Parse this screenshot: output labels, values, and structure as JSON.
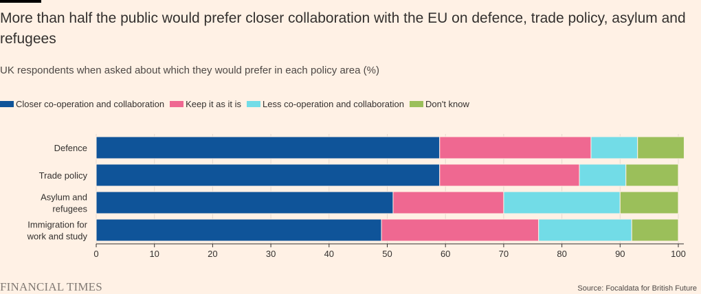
{
  "header": {
    "title": "More than half the public would prefer closer collaboration with the EU on defence, trade policy, asylum and refugees",
    "subtitle": "UK respondents when asked about which they would prefer in each policy area (%)"
  },
  "legend": [
    {
      "label": "Closer co-operation and collaboration",
      "color": "#0f5499"
    },
    {
      "label": "Keep it as it is",
      "color": "#ef6891"
    },
    {
      "label": "Less co-operation and collaboration",
      "color": "#72dce7"
    },
    {
      "label": "Don't know",
      "color": "#9bbf5a"
    }
  ],
  "chart_data": {
    "type": "bar",
    "orientation": "horizontal",
    "stacked": true,
    "title": "More than half the public would prefer closer collaboration with the EU on defence, trade policy, asylum and refugees",
    "subtitle": "UK respondents when asked about which they would prefer in each policy area (%)",
    "categories": [
      "Defence",
      "Trade policy",
      "Asylum and refugees",
      "Immigration for work and study"
    ],
    "category_lines": [
      [
        "Defence"
      ],
      [
        "Trade policy"
      ],
      [
        "Asylum and",
        "refugees"
      ],
      [
        "Immigration for",
        "work and study"
      ]
    ],
    "series": [
      {
        "name": "Closer co-operation and collaboration",
        "values": [
          59,
          59,
          51,
          49
        ],
        "color": "#0f5499"
      },
      {
        "name": "Keep it as it is",
        "values": [
          26,
          24,
          19,
          27
        ],
        "color": "#ef6891"
      },
      {
        "name": "Less co-operation and collaboration",
        "values": [
          8,
          8,
          20,
          16
        ],
        "color": "#72dce7"
      },
      {
        "name": "Don't know",
        "values": [
          8,
          9,
          10,
          8
        ],
        "color": "#9bbf5a"
      }
    ],
    "xlim": [
      0,
      100
    ],
    "xticks": [
      0,
      10,
      20,
      30,
      40,
      50,
      60,
      70,
      80,
      90,
      100
    ],
    "xlabel": "",
    "ylabel": "",
    "legend_position": "top-left"
  },
  "footer": {
    "brand": "FINANCIAL TIMES",
    "source": "Source: Focaldata for British Future"
  }
}
